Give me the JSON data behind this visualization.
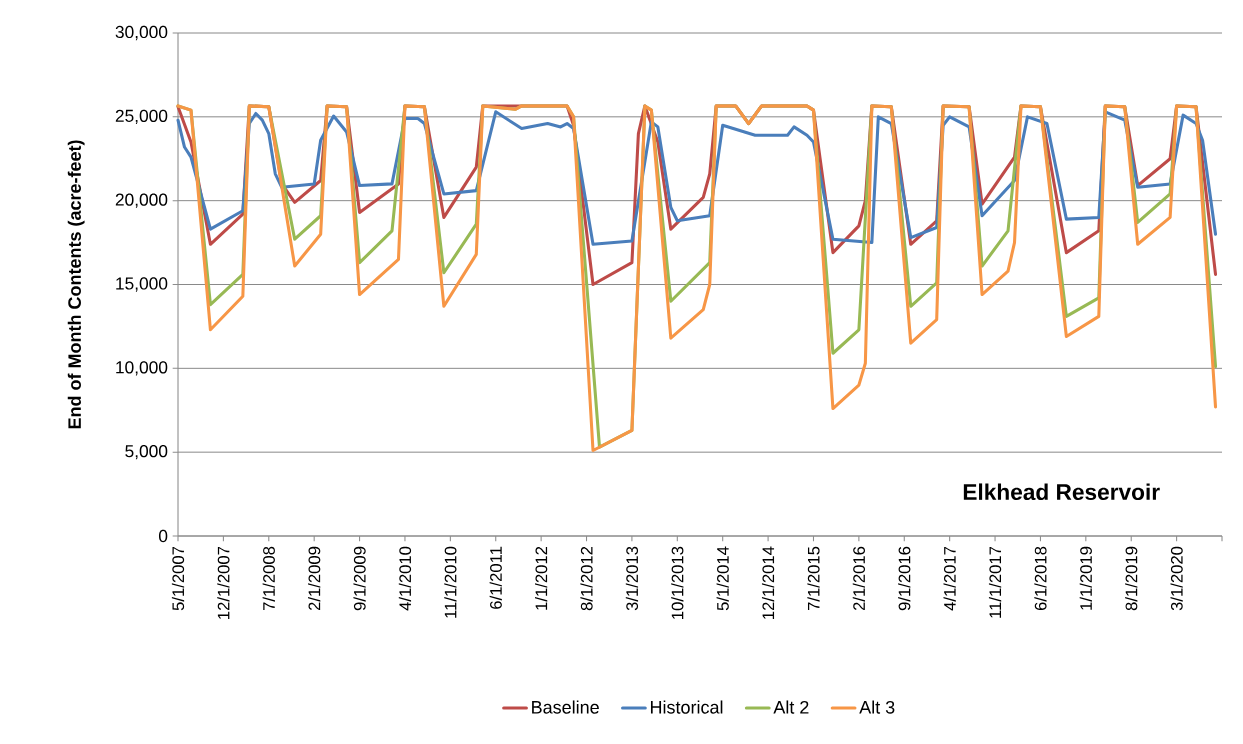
{
  "chart_data": {
    "type": "line",
    "title": "Elkhead Reservoir",
    "ylabel": "End of Month Contents (acre-feet)",
    "xlim": [
      "2007-05",
      "2020-10"
    ],
    "xticks": [
      {
        "value": "2007-05",
        "label": "5/1/2007"
      },
      {
        "value": "2007-12",
        "label": "12/1/2007"
      },
      {
        "value": "2008-07",
        "label": "7/1/2008"
      },
      {
        "value": "2009-02",
        "label": "2/1/2009"
      },
      {
        "value": "2009-09",
        "label": "9/1/2009"
      },
      {
        "value": "2010-04",
        "label": "4/1/2010"
      },
      {
        "value": "2010-11",
        "label": "11/1/2010"
      },
      {
        "value": "2011-06",
        "label": "6/1/2011"
      },
      {
        "value": "2012-01",
        "label": "1/1/2012"
      },
      {
        "value": "2012-08",
        "label": "8/1/2012"
      },
      {
        "value": "2013-03",
        "label": "3/1/2013"
      },
      {
        "value": "2013-10",
        "label": "10/1/2013"
      },
      {
        "value": "2014-05",
        "label": "5/1/2014"
      },
      {
        "value": "2014-12",
        "label": "12/1/2014"
      },
      {
        "value": "2015-07",
        "label": "7/1/2015"
      },
      {
        "value": "2016-02",
        "label": "2/1/2016"
      },
      {
        "value": "2016-09",
        "label": "9/1/2016"
      },
      {
        "value": "2017-04",
        "label": "4/1/2017"
      },
      {
        "value": "2017-11",
        "label": "11/1/2017"
      },
      {
        "value": "2018-06",
        "label": "6/1/2018"
      },
      {
        "value": "2019-01",
        "label": "1/1/2019"
      },
      {
        "value": "2019-08",
        "label": "8/1/2019"
      },
      {
        "value": "2020-03",
        "label": "3/1/2020"
      },
      {
        "value": "2020-10",
        "label": null
      }
    ],
    "ylim": [
      0,
      30000
    ],
    "yticks": [
      {
        "value": 0,
        "label": "0"
      },
      {
        "value": 5000,
        "label": "5,000"
      },
      {
        "value": 10000,
        "label": "10,000"
      },
      {
        "value": 15000,
        "label": "15,000"
      },
      {
        "value": 20000,
        "label": "20,000"
      },
      {
        "value": 25000,
        "label": "25,000"
      },
      {
        "value": 30000,
        "label": "30,000"
      }
    ],
    "grid": "y",
    "legend": "bottom",
    "marker": "none",
    "line_style": "solid",
    "series": [
      {
        "name": "Baseline",
        "color": "#be4b48",
        "x": [
          "2007-05",
          "2007-07",
          "2007-10",
          "2008-03",
          "2008-04",
          "2008-07",
          "2008-09",
          "2008-11",
          "2009-03",
          "2009-04",
          "2009-07",
          "2009-09",
          "2010-03",
          "2010-04",
          "2010-07",
          "2010-10",
          "2011-03",
          "2011-04",
          "2012-05",
          "2012-06",
          "2012-09",
          "2013-03",
          "2013-04",
          "2013-05",
          "2013-07",
          "2013-09",
          "2014-02",
          "2014-03",
          "2014-04",
          "2014-07",
          "2014-09",
          "2014-11",
          "2015-06",
          "2015-07",
          "2015-10",
          "2016-02",
          "2016-03",
          "2016-04",
          "2016-07",
          "2016-10",
          "2017-02",
          "2017-03",
          "2017-07",
          "2017-09",
          "2018-02",
          "2018-03",
          "2018-06",
          "2018-10",
          "2019-03",
          "2019-04",
          "2019-07",
          "2019-09",
          "2020-02",
          "2020-03",
          "2020-06",
          "2020-09"
        ],
        "values": [
          25600,
          23500,
          17400,
          19200,
          25650,
          25600,
          21000,
          19900,
          21200,
          25650,
          25600,
          19300,
          21000,
          25650,
          25600,
          19000,
          22000,
          25650,
          25650,
          24500,
          15000,
          16300,
          24000,
          25650,
          23500,
          18300,
          20200,
          21600,
          25650,
          25650,
          24600,
          25650,
          25650,
          25400,
          16900,
          18500,
          20000,
          25650,
          25600,
          17400,
          18800,
          25650,
          25600,
          19800,
          22600,
          25650,
          25600,
          16900,
          18200,
          25650,
          25600,
          20900,
          22500,
          25650,
          25600,
          15600
        ]
      },
      {
        "name": "Historical",
        "color": "#4a7ebb",
        "x": [
          "2007-05",
          "2007-06",
          "2007-07",
          "2007-10",
          "2008-03",
          "2008-04",
          "2008-05",
          "2008-06",
          "2008-07",
          "2008-08",
          "2008-09",
          "2009-02",
          "2009-03",
          "2009-05",
          "2009-07",
          "2009-09",
          "2010-02",
          "2010-04",
          "2010-06",
          "2010-07",
          "2010-10",
          "2011-03",
          "2011-06",
          "2011-10",
          "2012-02",
          "2012-04",
          "2012-05",
          "2012-06",
          "2012-09",
          "2013-03",
          "2013-06",
          "2013-07",
          "2013-09",
          "2013-10",
          "2014-03",
          "2014-05",
          "2014-10",
          "2015-03",
          "2015-04",
          "2015-06",
          "2015-07",
          "2015-10",
          "2016-04",
          "2016-05",
          "2016-07",
          "2016-10",
          "2017-02",
          "2017-03",
          "2017-04",
          "2017-07",
          "2017-09",
          "2018-02",
          "2018-04",
          "2018-07",
          "2018-10",
          "2019-03",
          "2019-04",
          "2019-07",
          "2019-09",
          "2020-02",
          "2020-04",
          "2020-06",
          "2020-07",
          "2020-09"
        ],
        "values": [
          24800,
          23200,
          22600,
          18300,
          19400,
          24600,
          25200,
          24800,
          24000,
          21600,
          20800,
          21000,
          23600,
          25050,
          24100,
          20900,
          21000,
          24900,
          24900,
          24600,
          20400,
          20600,
          25300,
          24300,
          24600,
          24400,
          24600,
          24300,
          17400,
          17600,
          24700,
          24400,
          19600,
          18800,
          19100,
          24500,
          23900,
          23900,
          24400,
          23900,
          23500,
          17700,
          17500,
          25000,
          24600,
          17800,
          18400,
          24500,
          25000,
          24400,
          19100,
          21200,
          25000,
          24600,
          18900,
          19000,
          25300,
          24800,
          20800,
          21000,
          25100,
          24600,
          23600,
          18000
        ]
      },
      {
        "name": "Alt 2",
        "color": "#98b954",
        "x": [
          "2007-05",
          "2007-07",
          "2007-10",
          "2008-03",
          "2008-04",
          "2008-07",
          "2008-11",
          "2009-03",
          "2009-04",
          "2009-07",
          "2009-09",
          "2010-02",
          "2010-04",
          "2010-07",
          "2010-10",
          "2011-03",
          "2011-04",
          "2011-09",
          "2011-10",
          "2012-05",
          "2012-06",
          "2012-10",
          "2013-03",
          "2013-05",
          "2013-06",
          "2013-09",
          "2014-03",
          "2014-04",
          "2014-07",
          "2014-09",
          "2014-11",
          "2015-06",
          "2015-07",
          "2015-10",
          "2016-02",
          "2016-04",
          "2016-07",
          "2016-10",
          "2017-02",
          "2017-03",
          "2017-07",
          "2017-09",
          "2018-01",
          "2018-03",
          "2018-06",
          "2018-10",
          "2019-03",
          "2019-04",
          "2019-07",
          "2019-09",
          "2020-02",
          "2020-03",
          "2020-06",
          "2020-09"
        ],
        "values": [
          25650,
          25400,
          13800,
          15600,
          25650,
          25600,
          17700,
          19100,
          25650,
          25600,
          16300,
          18200,
          25650,
          25600,
          15700,
          18600,
          25650,
          25450,
          25650,
          25650,
          25000,
          5300,
          6300,
          25650,
          25400,
          14000,
          16300,
          25650,
          25650,
          24600,
          25650,
          25650,
          25400,
          10900,
          12300,
          25650,
          25600,
          13700,
          15100,
          25650,
          25600,
          16100,
          18200,
          25650,
          25600,
          13100,
          14200,
          25650,
          25600,
          18700,
          20400,
          25650,
          25600,
          10100
        ]
      },
      {
        "name": "Alt 3",
        "color": "#f79646",
        "x": [
          "2007-05",
          "2007-07",
          "2007-10",
          "2008-03",
          "2008-04",
          "2008-07",
          "2008-11",
          "2009-03",
          "2009-04",
          "2009-07",
          "2009-09",
          "2010-01",
          "2010-03",
          "2010-04",
          "2010-07",
          "2010-10",
          "2011-03",
          "2011-04",
          "2011-09",
          "2011-10",
          "2012-05",
          "2012-06",
          "2012-09",
          "2013-03",
          "2013-05",
          "2013-06",
          "2013-09",
          "2014-02",
          "2014-03",
          "2014-04",
          "2014-07",
          "2014-09",
          "2014-11",
          "2015-06",
          "2015-07",
          "2015-10",
          "2016-02",
          "2016-03",
          "2016-04",
          "2016-07",
          "2016-10",
          "2017-02",
          "2017-03",
          "2017-07",
          "2017-09",
          "2018-01",
          "2018-02",
          "2018-03",
          "2018-06",
          "2018-10",
          "2019-03",
          "2019-04",
          "2019-07",
          "2019-09",
          "2020-02",
          "2020-03",
          "2020-06",
          "2020-09"
        ],
        "values": [
          25650,
          25400,
          12300,
          14300,
          25650,
          25600,
          16100,
          18000,
          25650,
          25600,
          14400,
          15800,
          16500,
          25650,
          25600,
          13700,
          16800,
          25650,
          25450,
          25650,
          25650,
          25000,
          5100,
          6300,
          25650,
          25400,
          11800,
          13500,
          15000,
          25650,
          25650,
          24600,
          25650,
          25650,
          25400,
          7600,
          9000,
          10300,
          25650,
          25600,
          11500,
          12900,
          25650,
          25600,
          14400,
          15800,
          17500,
          25650,
          25600,
          11900,
          13100,
          25650,
          25600,
          17400,
          19000,
          25650,
          25600,
          7700
        ]
      }
    ]
  }
}
